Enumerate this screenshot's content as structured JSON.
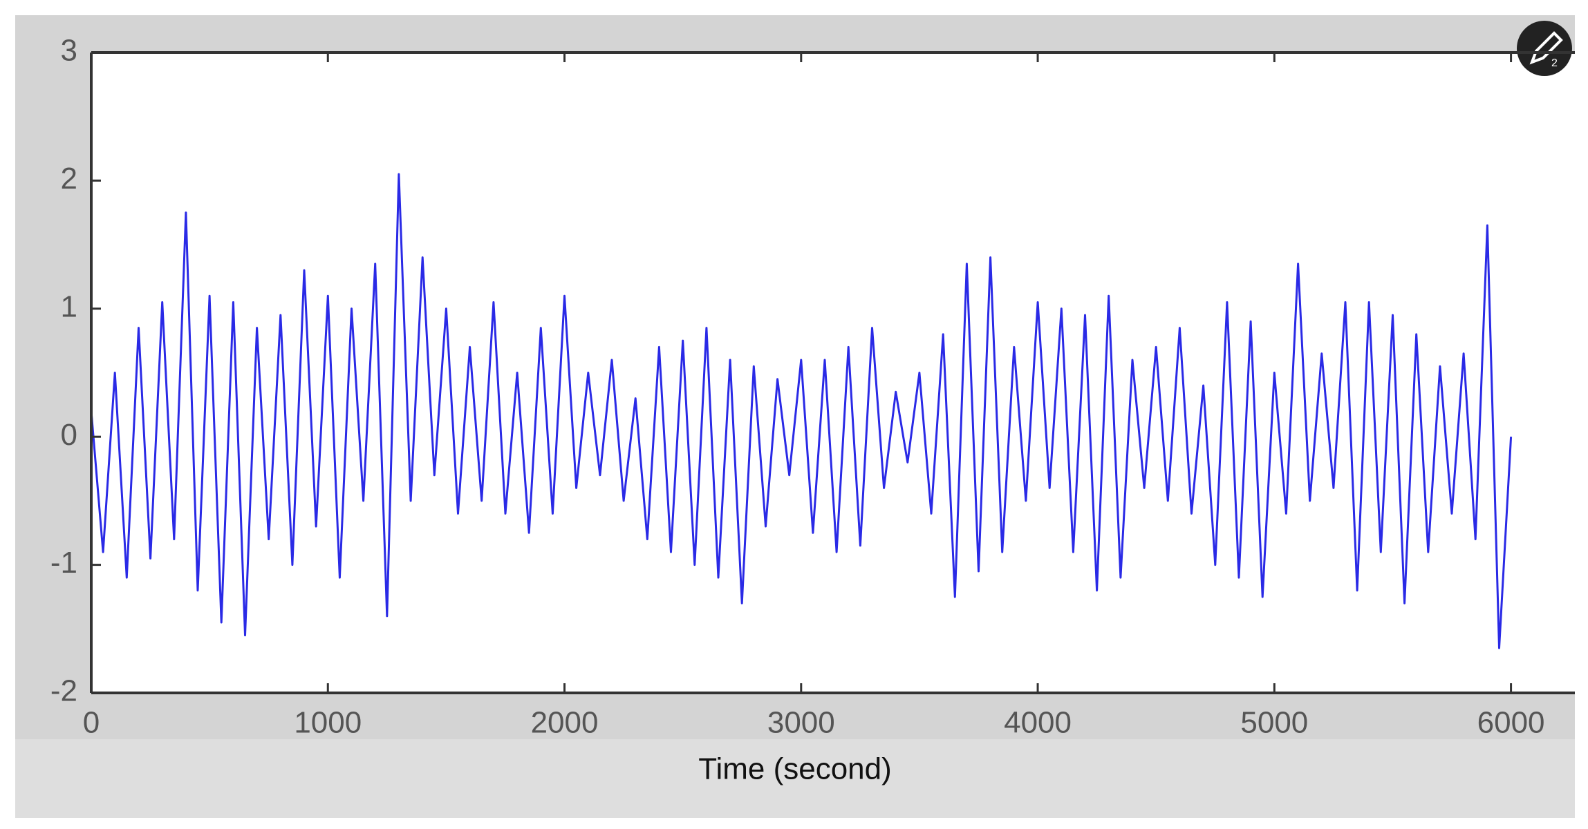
{
  "chart_data": {
    "type": "line",
    "xlabel": "Time (second)",
    "x": [
      0,
      50,
      100,
      150,
      200,
      250,
      300,
      350,
      400,
      450,
      500,
      550,
      600,
      650,
      700,
      750,
      800,
      850,
      900,
      950,
      1000,
      1050,
      1100,
      1150,
      1200,
      1250,
      1300,
      1350,
      1400,
      1450,
      1500,
      1550,
      1600,
      1650,
      1700,
      1750,
      1800,
      1850,
      1900,
      1950,
      2000,
      2050,
      2100,
      2150,
      2200,
      2250,
      2300,
      2350,
      2400,
      2450,
      2500,
      2550,
      2600,
      2650,
      2700,
      2750,
      2800,
      2850,
      2900,
      2950,
      3000,
      3050,
      3100,
      3150,
      3200,
      3250,
      3300,
      3350,
      3400,
      3450,
      3500,
      3550,
      3600,
      3650,
      3700,
      3750,
      3800,
      3850,
      3900,
      3950,
      4000,
      4050,
      4100,
      4150,
      4200,
      4250,
      4300,
      4350,
      4400,
      4450,
      4500,
      4550,
      4600,
      4650,
      4700,
      4750,
      4800,
      4850,
      4900,
      4950,
      5000,
      5050,
      5100,
      5150,
      5200,
      5250,
      5300,
      5350,
      5400,
      5450,
      5500,
      5550,
      5600,
      5650,
      5700,
      5750,
      5800,
      5850,
      5900,
      5950,
      6000
    ],
    "series": [
      {
        "color": "#2a2ae6",
        "values": [
          0.2,
          -0.9,
          0.5,
          -1.1,
          0.85,
          -0.95,
          1.05,
          -0.8,
          1.75,
          -1.2,
          1.1,
          -1.45,
          1.05,
          -1.55,
          0.85,
          -0.8,
          0.95,
          -1.0,
          1.3,
          -0.7,
          1.1,
          -1.1,
          1.0,
          -0.5,
          1.35,
          -1.4,
          2.05,
          -0.5,
          1.4,
          -0.3,
          1.0,
          -0.6,
          0.7,
          -0.5,
          1.05,
          -0.6,
          0.5,
          -0.75,
          0.85,
          -0.6,
          1.1,
          -0.4,
          0.5,
          -0.3,
          0.6,
          -0.5,
          0.3,
          -0.8,
          0.7,
          -0.9,
          0.75,
          -1.0,
          0.85,
          -1.1,
          0.6,
          -1.3,
          0.55,
          -0.7,
          0.45,
          -0.3,
          0.6,
          -0.75,
          0.6,
          -0.9,
          0.7,
          -0.85,
          0.85,
          -0.4,
          0.35,
          -0.2,
          0.5,
          -0.6,
          0.8,
          -1.25,
          1.35,
          -1.05,
          1.4,
          -0.9,
          0.7,
          -0.5,
          1.05,
          -0.4,
          1.0,
          -0.9,
          0.95,
          -1.2,
          1.1,
          -1.1,
          0.6,
          -0.4,
          0.7,
          -0.5,
          0.85,
          -0.6,
          0.4,
          -1.0,
          1.05,
          -1.1,
          0.9,
          -1.25,
          0.5,
          -0.6,
          1.35,
          -0.5,
          0.65,
          -0.4,
          1.05,
          -1.2,
          1.05,
          -0.9,
          0.95,
          -1.3,
          0.8,
          -0.9,
          0.55,
          -0.6,
          0.65,
          -0.8,
          1.65,
          -1.65,
          0.0
        ]
      }
    ],
    "xlim": [
      0,
      6270
    ],
    "ylim": [
      -2,
      3
    ],
    "xticks": [
      0,
      1000,
      2000,
      3000,
      4000,
      5000,
      6000
    ],
    "yticks": [
      -2,
      -1,
      0,
      1,
      2,
      3
    ]
  },
  "badge_count": "2"
}
